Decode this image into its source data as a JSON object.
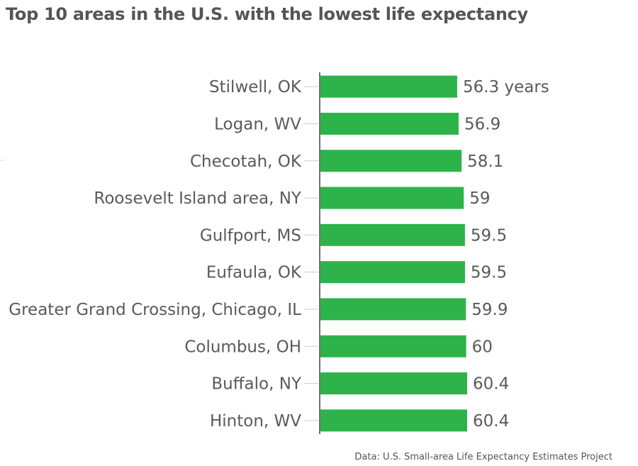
{
  "chart_data": {
    "type": "bar",
    "orientation": "horizontal",
    "title": "Top 10 areas in the U.S. with the lowest life expectancy",
    "source": "Data: U.S. Small-area Life Expectancy Estimates Project",
    "categories": [
      "Stilwell, OK",
      "Logan, WV",
      "Checotah, OK",
      "Roosevelt Island area, NY",
      "Gulfport, MS",
      "Eufaula, OK",
      "Greater Grand Crossing, Chicago, IL",
      "Columbus, OH",
      "Buffalo, NY",
      "Hinton, WV"
    ],
    "values": [
      56.3,
      56.9,
      58.1,
      59,
      59.5,
      59.5,
      59.9,
      60,
      60.4,
      60.4
    ],
    "data_labels": [
      "56.3 years",
      "56.9",
      "58.1",
      "59",
      "59.5",
      "59.5",
      "59.9",
      "60",
      "60.4",
      "60.4"
    ],
    "xlim": [
      0,
      60.4
    ],
    "grid": false,
    "bar_color": "#2db34a"
  }
}
